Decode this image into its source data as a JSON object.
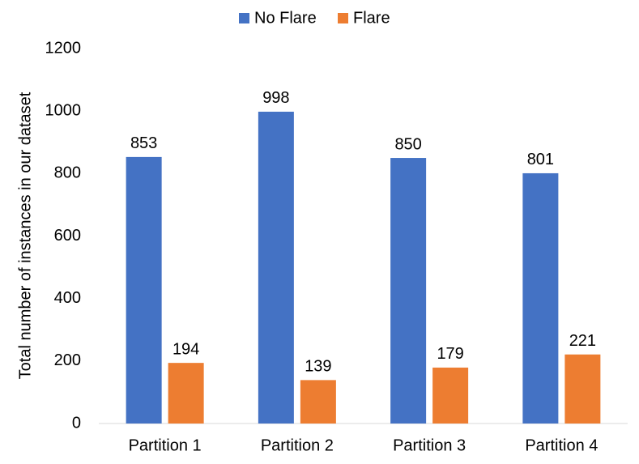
{
  "chart_data": {
    "type": "bar",
    "y_label": "Total number of instances in our dataset",
    "categories": [
      "Partition 1",
      "Partition 2",
      "Partition 3",
      "Partition 4"
    ],
    "series": [
      {
        "name": "No Flare",
        "color": "#4472c4",
        "values": [
          853,
          998,
          850,
          801
        ]
      },
      {
        "name": "Flare",
        "color": "#ed7d31",
        "values": [
          194,
          139,
          179,
          221
        ]
      }
    ],
    "ylim": [
      0,
      1200
    ],
    "yticks": [
      0,
      200,
      400,
      600,
      800,
      1000,
      1200
    ],
    "grid": false,
    "legend": "top"
  }
}
